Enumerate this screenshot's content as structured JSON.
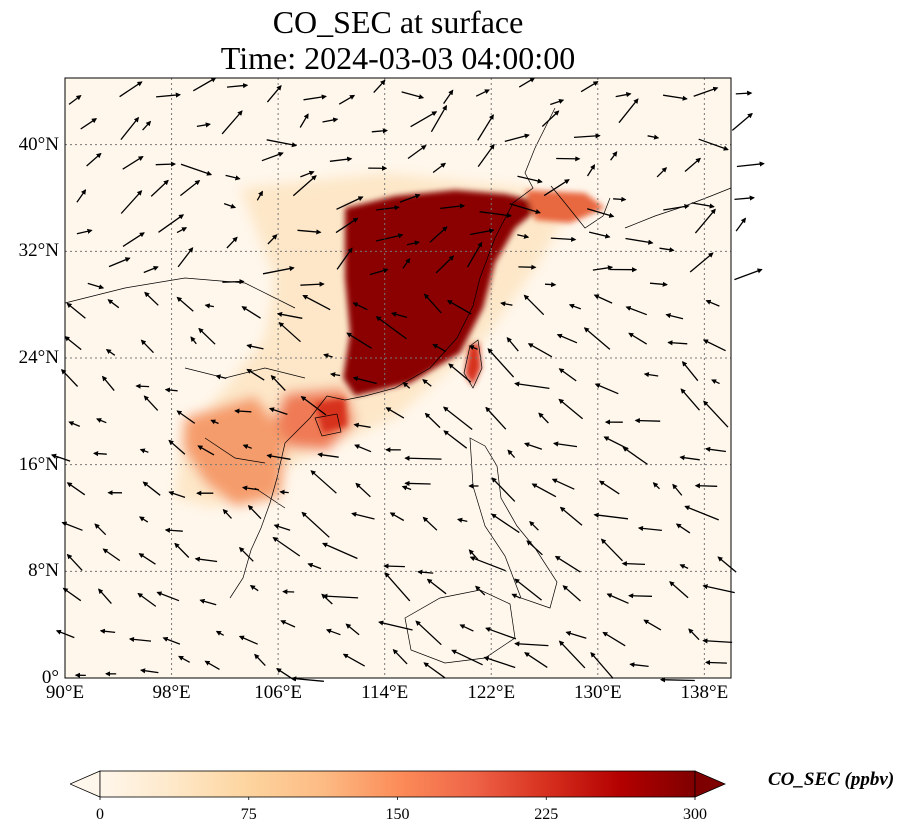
{
  "title": {
    "line1": "CO_SEC at surface",
    "line2": "Time: 2024-03-03 04:00:00"
  },
  "map": {
    "projection": "PlateCarree",
    "lon_range": [
      90,
      140
    ],
    "lat_range": [
      0,
      45
    ],
    "gridlines": "dotted",
    "lon_ticks": [
      {
        "value": 90,
        "label": "90°E"
      },
      {
        "value": 98,
        "label": "98°E"
      },
      {
        "value": 106,
        "label": "106°E"
      },
      {
        "value": 114,
        "label": "114°E"
      },
      {
        "value": 122,
        "label": "122°E"
      },
      {
        "value": 130,
        "label": "130°E"
      },
      {
        "value": 138,
        "label": "138°E"
      }
    ],
    "lat_ticks": [
      {
        "value": 0,
        "label": "0°"
      },
      {
        "value": 8,
        "label": "8°N"
      },
      {
        "value": 16,
        "label": "16°N"
      },
      {
        "value": 24,
        "label": "24°N"
      },
      {
        "value": 32,
        "label": "32°N"
      },
      {
        "value": 40,
        "label": "40°N"
      }
    ],
    "overlay": "wind vectors"
  },
  "colorbar": {
    "label": "CO_SEC (ppbv)",
    "range": [
      0,
      300
    ],
    "extend": "both",
    "colormap": "OrRd",
    "ticks": [
      {
        "value": 0,
        "label": "0"
      },
      {
        "value": 75,
        "label": "75"
      },
      {
        "value": 150,
        "label": "150"
      },
      {
        "value": 225,
        "label": "225"
      },
      {
        "value": 300,
        "label": "300"
      }
    ],
    "stops": [
      "#fff7ec",
      "#fee8c8",
      "#fdd49e",
      "#fdbb84",
      "#fc8d59",
      "#ef6548",
      "#d7301f",
      "#b30000",
      "#7f0000"
    ]
  }
}
